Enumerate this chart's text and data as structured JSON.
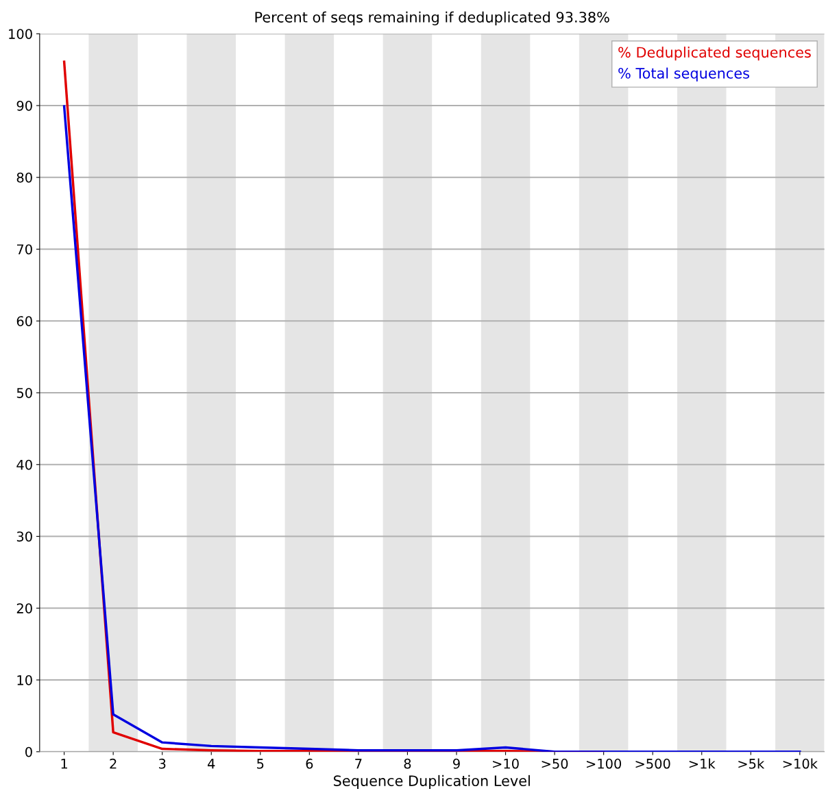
{
  "chart_data": {
    "type": "line",
    "title": "Percent of seqs remaining if deduplicated 93.38%",
    "xlabel": "Sequence Duplication Level",
    "categories": [
      "1",
      "2",
      "3",
      "4",
      "5",
      "6",
      "7",
      "8",
      "9",
      ">10",
      ">50",
      ">100",
      ">500",
      ">1k",
      ">5k",
      ">10k"
    ],
    "series": [
      {
        "name": "% Deduplicated sequences",
        "color": "#e00000",
        "values": [
          96.1,
          2.7,
          0.4,
          0.2,
          0.1,
          0.1,
          0.1,
          0.1,
          0.1,
          0.1,
          0,
          0,
          null,
          null,
          null,
          null
        ]
      },
      {
        "name": "% Total sequences",
        "color": "#0000e0",
        "values": [
          89.9,
          5.2,
          1.3,
          0.8,
          0.6,
          0.4,
          0.2,
          0.2,
          0.2,
          0.6,
          0,
          0,
          0,
          0,
          0,
          0
        ]
      }
    ],
    "bands": [
      {
        "axis": "x",
        "from": "2",
        "to": "2",
        "color": "#e5e5e5"
      },
      {
        "axis": "x",
        "from": "4",
        "to": "4",
        "color": "#e5e5e5"
      },
      {
        "axis": "x",
        "from": "6",
        "to": "6",
        "color": "#e5e5e5"
      },
      {
        "axis": "x",
        "from": "8",
        "to": "8",
        "color": "#e5e5e5"
      },
      {
        "axis": "x",
        "from": ">10",
        "to": ">10",
        "color": "#e5e5e5"
      },
      {
        "axis": "x",
        "from": ">100",
        "to": ">100",
        "color": "#e5e5e5"
      },
      {
        "axis": "x",
        "from": ">1k",
        "to": ">1k",
        "color": "#e5e5e5"
      },
      {
        "axis": "x",
        "from": ">10k",
        "to": ">10k",
        "color": "#e5e5e5"
      }
    ],
    "ylim": [
      0,
      100
    ],
    "yticks": [
      0,
      10,
      20,
      30,
      40,
      50,
      60,
      70,
      80,
      90,
      100
    ],
    "grid": "y",
    "legend": "top right",
    "marker": "none",
    "line_style": "solid"
  }
}
